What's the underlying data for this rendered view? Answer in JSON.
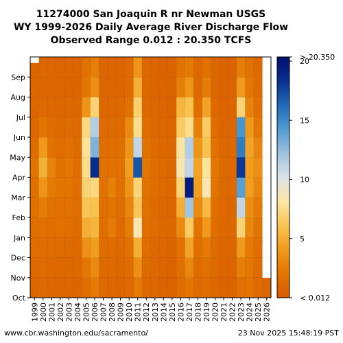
{
  "chart_data": {
    "type": "heatmap",
    "title_lines": [
      "11274000 San Joaquin R nr Newman USGS",
      "WY 1999-2026 Daily Average River Discharge Flow",
      "Observed Range 0.012 : 20.350 TCFS"
    ],
    "x_categories": [
      "1999",
      "2000",
      "2001",
      "2002",
      "2003",
      "2004",
      "2005",
      "2006",
      "2007",
      "2008",
      "2009",
      "2010",
      "2011",
      "2012",
      "2013",
      "2014",
      "2015",
      "2016",
      "2017",
      "2018",
      "2019",
      "2020",
      "2021",
      "2022",
      "2023",
      "2024",
      "2025",
      "2026"
    ],
    "y_categories": [
      "Oct",
      "Nov",
      "Dec",
      "Jan",
      "Feb",
      "Mar",
      "Apr",
      "May",
      "Jun",
      "Jul",
      "Aug",
      "Sep"
    ],
    "unit": "TCFS",
    "colorbar": {
      "min_label": "< 0.012",
      "max_label": "> 20.350",
      "ticks": [
        {
          "value": 5,
          "label": "5"
        },
        {
          "value": 10,
          "label": "10"
        },
        {
          "value": 15,
          "label": "15"
        },
        {
          "value": 20,
          "label": "20"
        }
      ],
      "range": [
        0,
        20.35
      ],
      "colors": [
        "#d75a00",
        "#e27400",
        "#f09a1c",
        "#f8c452",
        "#fde7a5",
        "#dce2e9",
        "#9dc2de",
        "#4f9bd0",
        "#1f6ab7",
        "#08308f",
        "#000e6e"
      ]
    },
    "values_tcfs": [
      [
        1.0,
        1.2,
        1.4,
        1.6,
        1.8,
        1.7,
        2.1,
        1.4,
        1.1,
        1.0,
        0.9,
        0.9
      ],
      [
        1.2,
        1.3,
        1.5,
        1.7,
        2.5,
        3.8,
        5.2,
        4.0,
        2.0,
        1.2,
        1.0,
        1.0
      ],
      [
        1.1,
        1.2,
        1.4,
        1.5,
        1.8,
        2.4,
        2.8,
        1.8,
        1.4,
        1.1,
        1.0,
        1.0
      ],
      [
        1.0,
        1.2,
        1.3,
        1.9,
        1.8,
        2.0,
        1.8,
        1.5,
        1.2,
        1.0,
        0.9,
        0.9
      ],
      [
        1.0,
        1.1,
        1.3,
        1.6,
        1.7,
        2.0,
        2.2,
        1.8,
        1.3,
        1.1,
        0.9,
        0.9
      ],
      [
        0.9,
        1.1,
        1.2,
        1.3,
        1.4,
        1.6,
        1.5,
        1.3,
        1.2,
        1.0,
        0.9,
        0.9
      ],
      [
        1.5,
        2.2,
        3.6,
        5.0,
        6.2,
        7.0,
        7.5,
        7.8,
        7.2,
        3.8,
        2.2,
        1.8
      ],
      [
        2.4,
        3.2,
        4.2,
        5.4,
        6.0,
        7.2,
        18.5,
        13.0,
        11.5,
        7.0,
        3.5,
        2.6
      ],
      [
        1.2,
        1.3,
        1.4,
        1.5,
        1.6,
        1.8,
        1.8,
        1.6,
        1.3,
        1.1,
        1.0,
        1.0
      ],
      [
        1.0,
        1.2,
        1.4,
        2.4,
        2.0,
        2.6,
        1.8,
        1.6,
        1.3,
        1.1,
        0.9,
        0.9
      ],
      [
        0.9,
        1.1,
        1.2,
        1.3,
        1.5,
        1.7,
        1.9,
        1.7,
        1.3,
        1.1,
        0.9,
        0.9
      ],
      [
        1.2,
        1.5,
        1.8,
        2.5,
        3.0,
        3.8,
        4.2,
        3.8,
        3.2,
        1.9,
        1.4,
        1.2
      ],
      [
        2.4,
        3.5,
        5.0,
        8.5,
        6.2,
        7.0,
        17.0,
        11.0,
        7.5,
        6.8,
        5.0,
        3.8
      ],
      [
        1.2,
        1.3,
        1.4,
        1.6,
        1.8,
        1.9,
        2.2,
        1.8,
        1.5,
        1.2,
        1.1,
        1.0
      ],
      [
        1.0,
        1.1,
        1.2,
        1.4,
        1.3,
        1.5,
        1.5,
        1.3,
        1.1,
        1.0,
        0.9,
        0.9
      ],
      [
        0.8,
        0.9,
        1.0,
        1.1,
        1.1,
        1.2,
        1.2,
        1.1,
        1.0,
        0.9,
        0.8,
        0.8
      ],
      [
        0.7,
        0.8,
        0.9,
        1.1,
        1.0,
        1.1,
        1.1,
        1.0,
        0.9,
        0.8,
        0.7,
        0.7
      ],
      [
        1.5,
        1.6,
        1.8,
        3.2,
        5.0,
        7.0,
        8.5,
        8.0,
        6.5,
        5.4,
        2.6,
        1.8
      ],
      [
        2.0,
        3.0,
        4.5,
        6.5,
        12.0,
        19.5,
        11.0,
        11.5,
        7.5,
        6.0,
        3.8,
        2.4
      ],
      [
        1.2,
        1.4,
        1.6,
        2.0,
        3.2,
        4.2,
        4.5,
        3.8,
        2.6,
        1.5,
        1.2,
        1.1
      ],
      [
        1.5,
        1.8,
        2.4,
        4.0,
        5.5,
        8.5,
        8.0,
        6.0,
        6.5,
        4.5,
        2.5,
        1.8
      ],
      [
        1.1,
        1.2,
        1.3,
        1.5,
        1.7,
        2.0,
        2.2,
        1.8,
        1.5,
        1.2,
        1.0,
        1.0
      ],
      [
        0.8,
        0.9,
        1.0,
        1.1,
        1.2,
        1.2,
        1.3,
        1.1,
        0.9,
        0.8,
        0.8,
        0.8
      ],
      [
        0.8,
        0.9,
        1.0,
        1.1,
        1.1,
        1.2,
        1.2,
        1.1,
        1.0,
        0.9,
        0.8,
        0.8
      ],
      [
        1.8,
        2.6,
        4.0,
        7.0,
        11.0,
        14.0,
        18.0,
        15.5,
        14.5,
        7.0,
        4.0,
        2.6
      ],
      [
        2.0,
        2.2,
        2.4,
        3.0,
        3.4,
        4.2,
        4.2,
        4.5,
        4.0,
        2.8,
        2.2,
        1.8
      ],
      [
        1.3,
        1.4,
        1.6,
        2.0,
        2.4,
        3.0,
        3.5,
        3.0,
        2.2,
        1.6,
        1.3,
        1.2
      ],
      [
        1.0,
        null,
        null,
        null,
        null,
        null,
        null,
        null,
        null,
        null,
        null,
        null
      ]
    ],
    "missing_segments": [
      {
        "year": "1999",
        "start_month_index": 11,
        "start_fraction": 0.7,
        "end_month_index": 11,
        "end_fraction": 1.0
      }
    ]
  },
  "footer": {
    "left": "www.cbr.washington.edu/sacramento/",
    "right": "23 Nov 2025 15:48:19 PST"
  }
}
